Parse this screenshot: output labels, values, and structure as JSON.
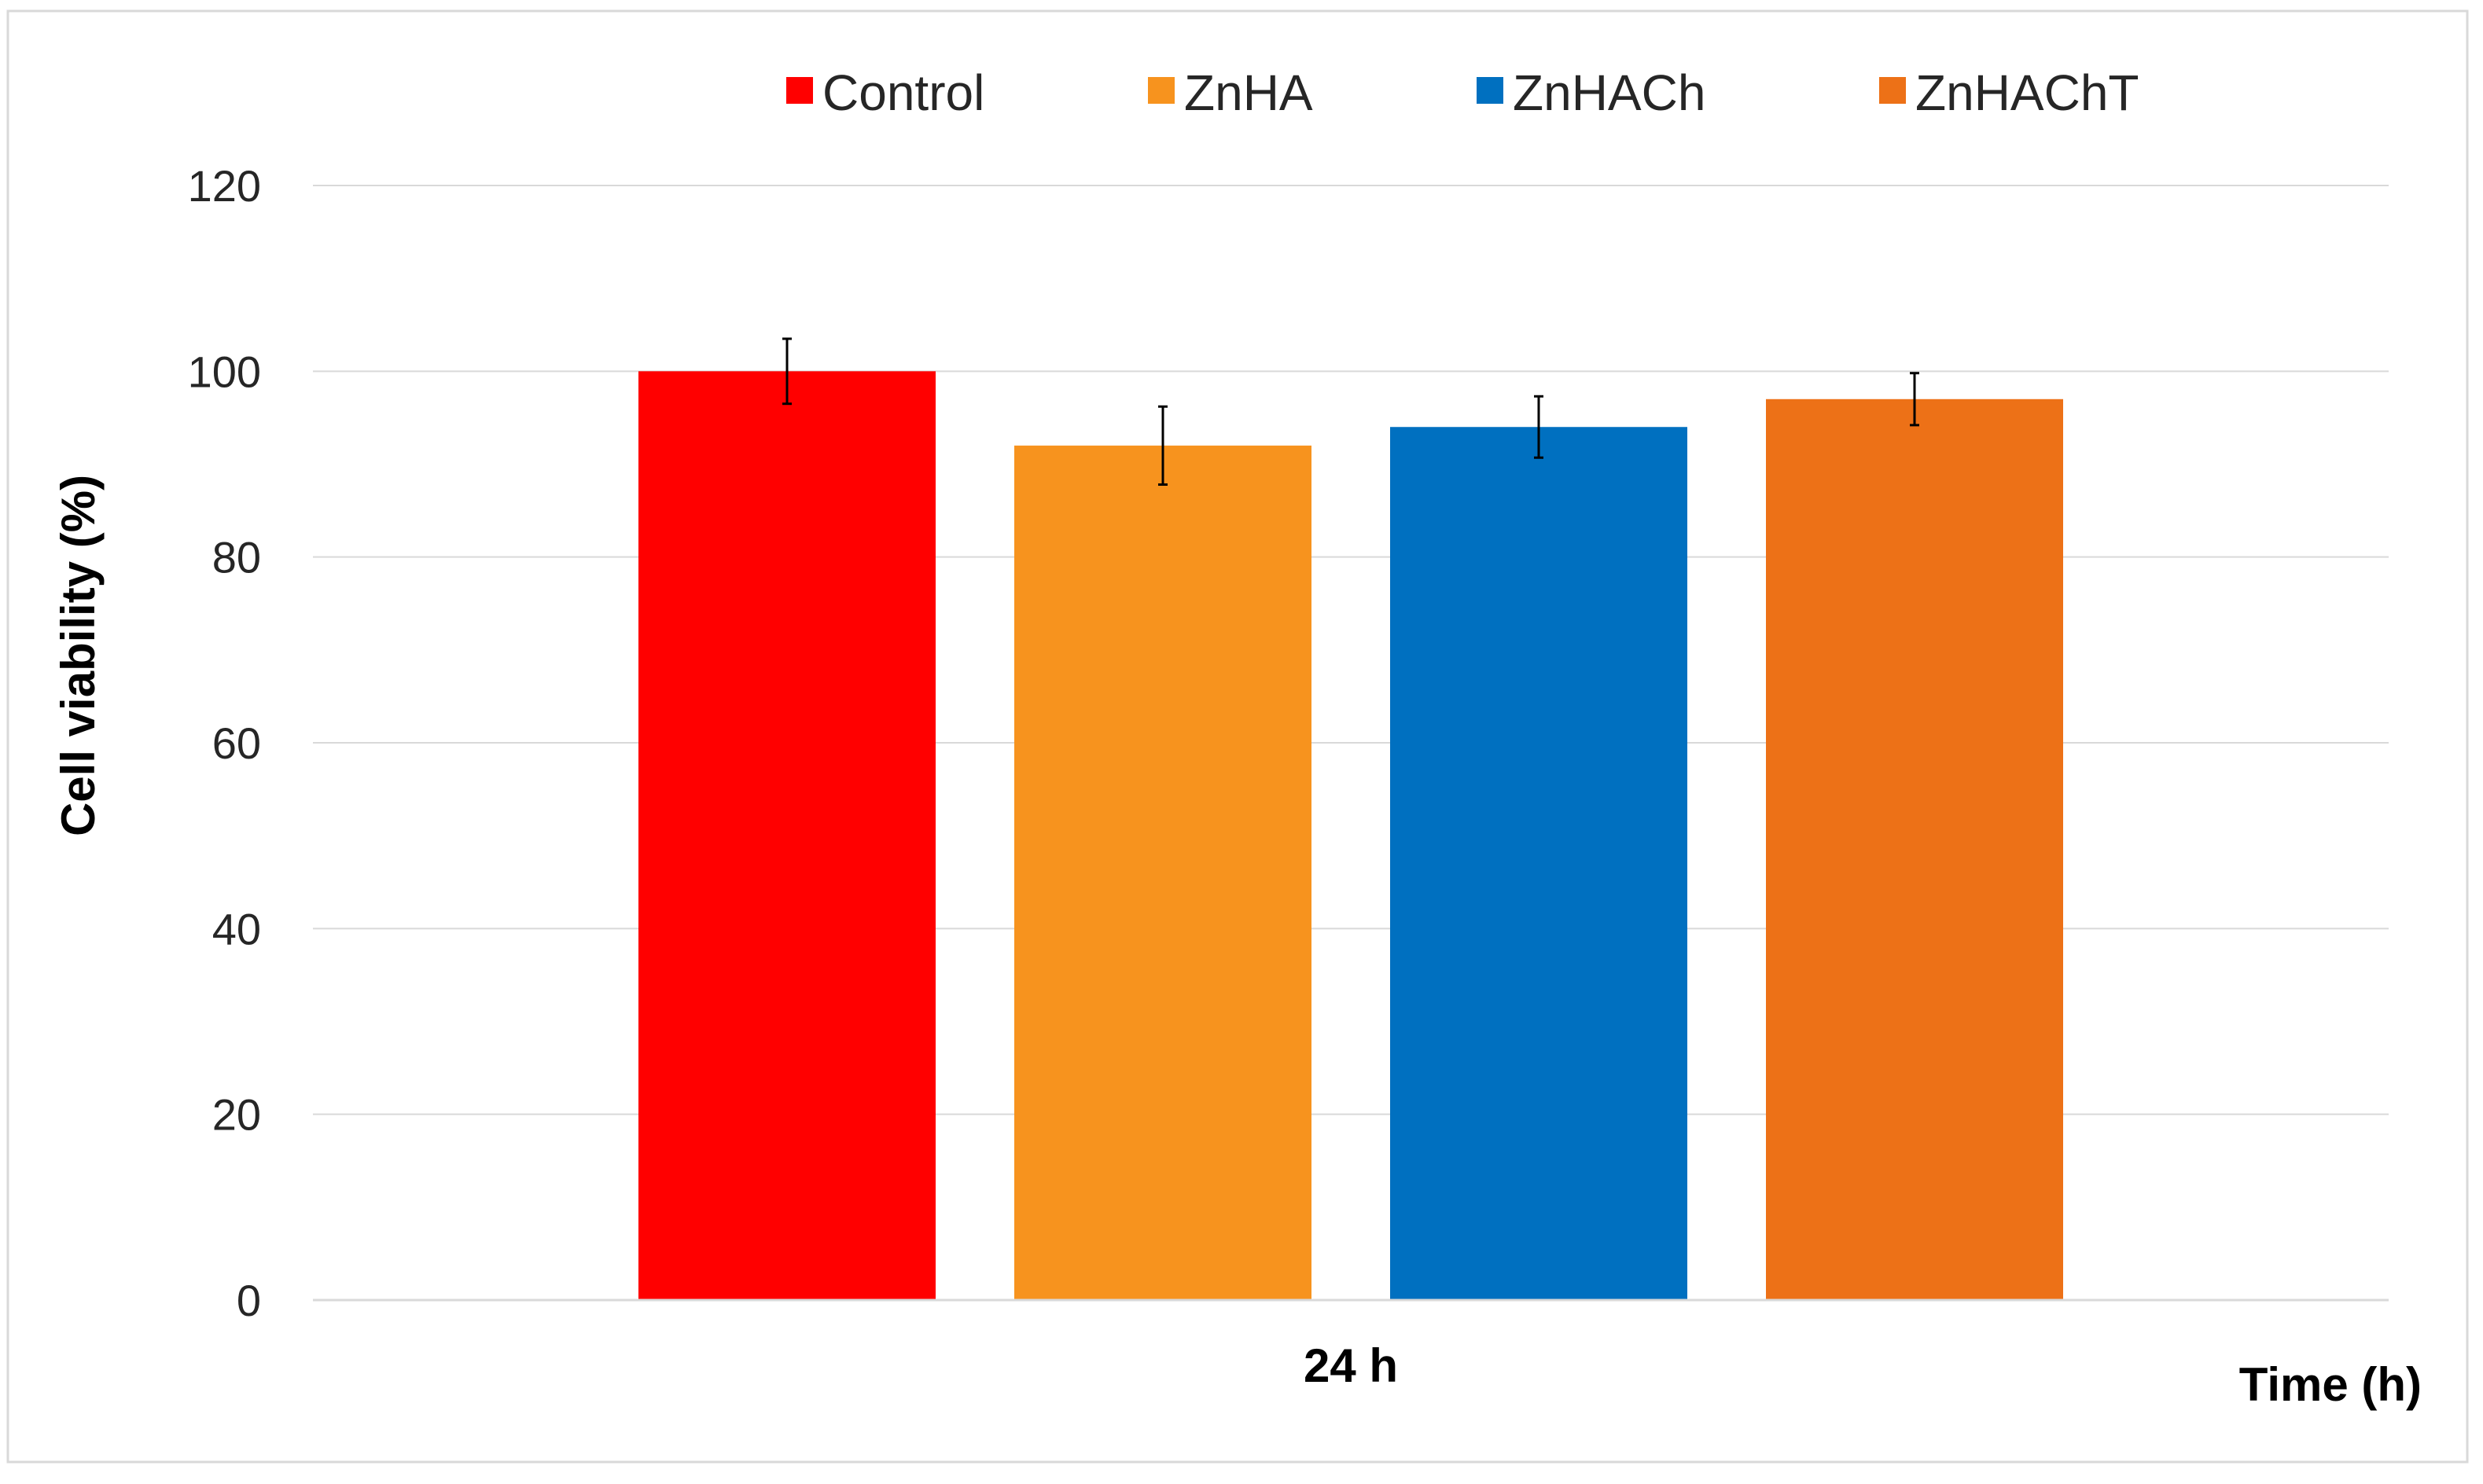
{
  "chart_data": {
    "type": "bar",
    "title": "",
    "categories": [
      "24 h"
    ],
    "series": [
      {
        "name": "Control",
        "color": "#ff0000",
        "values": [
          100
        ],
        "error": [
          3.5
        ]
      },
      {
        "name": "ZnHA",
        "color": "#f7931e",
        "values": [
          92
        ],
        "error": [
          4.2
        ]
      },
      {
        "name": "ZnHACh",
        "color": "#0070c0",
        "values": [
          94
        ],
        "error": [
          3.3
        ]
      },
      {
        "name": "ZnHAChT",
        "color": "#ed7117",
        "values": [
          97
        ],
        "error": [
          2.8
        ]
      }
    ],
    "xlabel": "Time (h)",
    "ylabel": "Cell viability (%)",
    "ylim": [
      0,
      120
    ],
    "yticks": [
      0,
      20,
      40,
      60,
      80,
      100,
      120
    ],
    "grid": true,
    "legend_position": "top"
  }
}
